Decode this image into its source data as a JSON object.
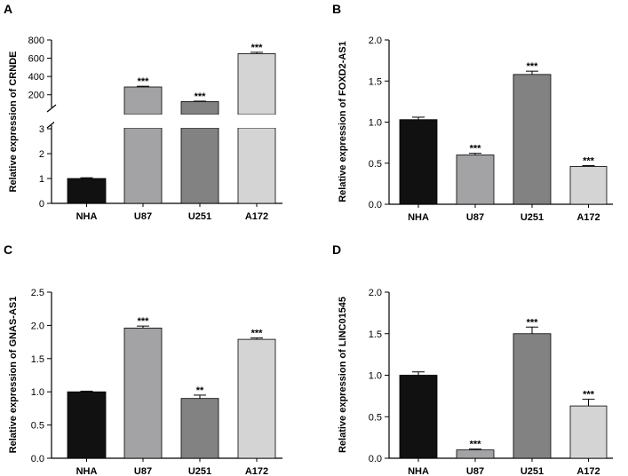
{
  "chart_data": [
    {
      "type": "bar",
      "panel": "A",
      "ylabel": "Relative expression of CRNDE",
      "categories": [
        "NHA",
        "U87",
        "U251",
        "A172"
      ],
      "values": [
        1.0,
        285,
        125,
        650
      ],
      "errors": [
        0.03,
        8,
        5,
        15
      ],
      "significance": [
        "",
        "***",
        "***",
        "***"
      ],
      "broken_axis": true,
      "lower_ylim": [
        0,
        3
      ],
      "lower_ticks": [
        "0",
        "1",
        "2",
        "3"
      ],
      "upper_ylim": [
        100,
        800
      ],
      "upper_ticks": [
        "200",
        "400",
        "600",
        "800"
      ],
      "colors": [
        "#111111",
        "#a3a3a6",
        "#828282",
        "#d4d4d4"
      ]
    },
    {
      "type": "bar",
      "panel": "B",
      "ylabel": "Relative expression of FOXD2-AS1",
      "categories": [
        "NHA",
        "U87",
        "U251",
        "A172"
      ],
      "values": [
        1.03,
        0.6,
        1.58,
        0.46
      ],
      "errors": [
        0.03,
        0.02,
        0.04,
        0.01
      ],
      "significance": [
        "",
        "***",
        "***",
        "***"
      ],
      "ylim": [
        0,
        2.0
      ],
      "ticks": [
        "0.0",
        "0.5",
        "1.0",
        "1.5",
        "2.0"
      ],
      "colors": [
        "#111111",
        "#a3a3a6",
        "#828282",
        "#d4d4d4"
      ]
    },
    {
      "type": "bar",
      "panel": "C",
      "ylabel": "Relative expression of GNAS-AS1",
      "categories": [
        "NHA",
        "U87",
        "U251",
        "A172"
      ],
      "values": [
        1.0,
        1.96,
        0.9,
        1.79
      ],
      "errors": [
        0.01,
        0.03,
        0.05,
        0.02
      ],
      "significance": [
        "",
        "***",
        "**",
        "***"
      ],
      "ylim": [
        0,
        2.5
      ],
      "ticks": [
        "0.0",
        "0.5",
        "1.0",
        "1.5",
        "2.0",
        "2.5"
      ],
      "colors": [
        "#111111",
        "#a3a3a6",
        "#828282",
        "#d4d4d4"
      ]
    },
    {
      "type": "bar",
      "panel": "D",
      "ylabel": "Relative expression of LINC01545",
      "categories": [
        "NHA",
        "U87",
        "U251",
        "A172"
      ],
      "values": [
        1.0,
        0.1,
        1.5,
        0.63
      ],
      "errors": [
        0.04,
        0.01,
        0.08,
        0.08
      ],
      "significance": [
        "",
        "***",
        "***",
        "***"
      ],
      "ylim": [
        0,
        2.0
      ],
      "ticks": [
        "0.0",
        "0.5",
        "1.0",
        "1.5",
        "2.0"
      ],
      "colors": [
        "#111111",
        "#a3a3a6",
        "#828282",
        "#d4d4d4"
      ]
    }
  ]
}
